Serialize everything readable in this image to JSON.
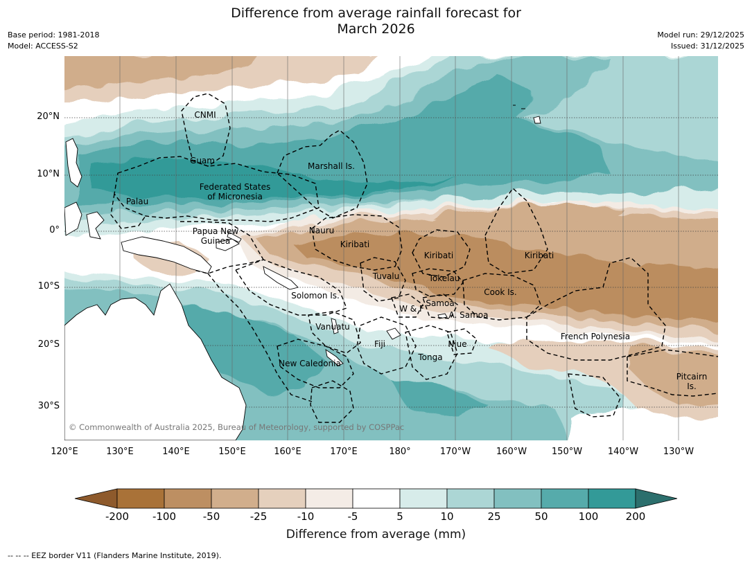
{
  "title": {
    "line1": "Difference from average rainfall forecast for",
    "line2": "March 2026"
  },
  "meta": {
    "base_period": "Base period: 1981-2018",
    "model": "Model: ACCESS-S2",
    "model_run": "Model run: 29/12/2025",
    "issued": "Issued: 31/12/2025"
  },
  "axes": {
    "lon_labels": [
      "120°E",
      "130°E",
      "140°E",
      "150°E",
      "160°E",
      "170°E",
      "180°",
      "170°W",
      "160°W",
      "150°W",
      "140°W",
      "130°W"
    ],
    "lat_labels": [
      "20°N",
      "10°N",
      "0°",
      "10°S",
      "20°S",
      "30°S"
    ]
  },
  "regions": [
    {
      "id": "cnmi",
      "name": "CNMI"
    },
    {
      "id": "guam",
      "name": "Guam"
    },
    {
      "id": "marshall",
      "name": "Marshall Is."
    },
    {
      "id": "fsm",
      "name": "Federated States\nof Micronesia"
    },
    {
      "id": "palau",
      "name": "Palau"
    },
    {
      "id": "png",
      "name": "Papua New\nGuinea"
    },
    {
      "id": "nauru",
      "name": "Nauru"
    },
    {
      "id": "kiribati-w",
      "name": "Kiribati"
    },
    {
      "id": "kiribati-c",
      "name": "Kiribati"
    },
    {
      "id": "kiribati-e",
      "name": "Kiribati"
    },
    {
      "id": "tuvalu",
      "name": "Tuvalu"
    },
    {
      "id": "tokelau",
      "name": "Tokelau"
    },
    {
      "id": "cook",
      "name": "Cook Is."
    },
    {
      "id": "solomon",
      "name": "Solomon Is."
    },
    {
      "id": "wf",
      "name": "W & F"
    },
    {
      "id": "samoa",
      "name": "Samoa"
    },
    {
      "id": "amsamoa",
      "name": "A. Samoa"
    },
    {
      "id": "vanuatu",
      "name": "Vanuatu"
    },
    {
      "id": "fiji",
      "name": "Fiji"
    },
    {
      "id": "niue",
      "name": "Niue"
    },
    {
      "id": "tonga",
      "name": "Tonga"
    },
    {
      "id": "fp",
      "name": "French Polynesia"
    },
    {
      "id": "newcal",
      "name": "New Caledonia"
    },
    {
      "id": "pitcairn",
      "name": "Pitcairn\nIs."
    }
  ],
  "copyright": "© Commonwealth of Australia 2025, Bureau of Meteorology, supported by COSPPac",
  "colorbar": {
    "ticks": [
      "-200",
      "-100",
      "-50",
      "-25",
      "-10",
      "-5",
      "5",
      "10",
      "25",
      "50",
      "100",
      "200"
    ],
    "colors": [
      "#8e5a2c",
      "#a97238",
      "#bd8f62",
      "#d1ae8c",
      "#e5d0bd",
      "#f4ece6",
      "#ffffff",
      "#d7ecea",
      "#acd6d5",
      "#82c0c0",
      "#56abab",
      "#339a98",
      "#2c6f6d"
    ],
    "title": "Difference from average (mm)"
  },
  "footnote": "--  --  -- EEZ border V11 (Flanders Marine Institute, 2019).",
  "palette": {
    "dry_strong": "#bb8d5f",
    "dry_mid": "#d0ad8b",
    "dry_light": "#e5cfbc",
    "dry_faint": "#f3ebe4",
    "wet_faint": "#d6ecea",
    "wet_light": "#abd6d5",
    "wet_mid": "#82c0c0",
    "wet_strong": "#55aaaa",
    "wet_very": "#329a98",
    "land": "#ffffff"
  }
}
